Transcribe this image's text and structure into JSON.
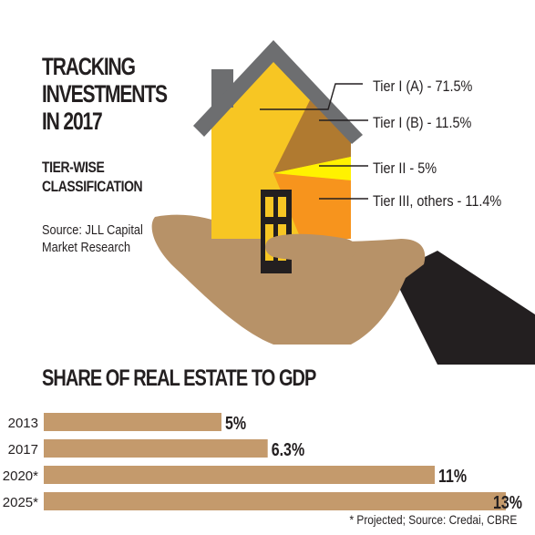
{
  "infographic": {
    "title_lines": [
      "TRACKING",
      "INVESTMENTS",
      "IN 2017"
    ],
    "subtitle_lines": [
      "TIER-WISE",
      "CLASSIFICATION"
    ],
    "source_lines": [
      "Source: JLL Capital",
      "Market Research"
    ]
  },
  "colors": {
    "house_wall": "#f7c623",
    "roof": "#6d6e70",
    "chimney": "#6d6e70",
    "tier_i_a": "#f7c623",
    "tier_i_b": "#b07a30",
    "tier_ii": "#fff200",
    "tier_iii": "#f7941d",
    "door": "#231f20",
    "hand": "#b79268",
    "sleeve": "#231f20",
    "bar": "#c49a6c",
    "text": "#231f20"
  },
  "chart_data": [
    {
      "type": "pie",
      "categories": [
        "Tier I (A)",
        "Tier I (B)",
        "Tier II",
        "Tier III, others"
      ],
      "values": [
        71.5,
        11.5,
        5,
        11.4
      ],
      "labels": [
        "Tier I (A) - 71.5%",
        "Tier I (B) -  11.5%",
        "Tier II - 5%",
        "Tier III, others - 11.4%"
      ],
      "title": "TRACKING INVESTMENTS IN 2017",
      "subtitle": "TIER-WISE CLASSIFICATION",
      "source": "Source: JLL Capital Market Research"
    },
    {
      "type": "bar",
      "orientation": "horizontal",
      "title": "SHARE OF REAL ESTATE TO GDP",
      "categories": [
        "2013",
        "2017",
        "2020*",
        "2025*"
      ],
      "values": [
        5,
        6.3,
        11,
        13
      ],
      "value_labels": [
        "5%",
        "6.3%",
        "11%",
        "13%"
      ],
      "xlim": [
        0,
        13
      ],
      "grid": false,
      "footnote": "* Projected; Source: Credai, CBRE"
    }
  ]
}
